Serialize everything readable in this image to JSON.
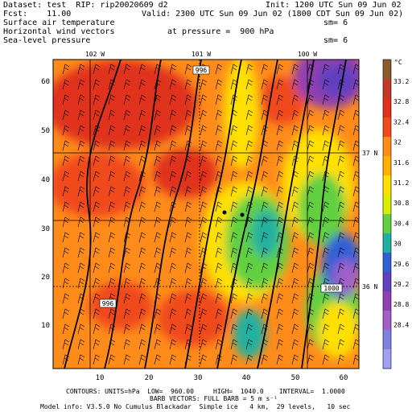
{
  "header": {
    "dataset_line": "Dataset: test  RIP: rip20020609 d2",
    "init_line": "Init: 1200 UTC Sun 09 Jun 02",
    "fcst_line": "Fcst:    11.00",
    "valid_line": "Valid: 2300 UTC Sun 09 Jun 02 (1800 CDT Sun 09 Jun 02)",
    "field1": "Surface air temperature",
    "field2": "Horizontal wind vectors",
    "field3": "Sea-level pressure",
    "pressure_label": "at pressure =  900 hPa",
    "sm1": "sm= 6",
    "sm2": "sm= 6"
  },
  "map": {
    "longitudes": [
      "102 W",
      "101 W",
      "100 W"
    ],
    "latitudes": [
      "37 N",
      "36 N"
    ],
    "x_ticks": [
      "10",
      "20",
      "30",
      "40",
      "50",
      "60"
    ],
    "y_ticks": [
      "10",
      "20",
      "30",
      "40",
      "50",
      "60"
    ],
    "isobar_labels": [
      "996",
      "996",
      "1000"
    ]
  },
  "colorbar": {
    "unit": "°C",
    "labels": [
      "33.2",
      "32.8",
      "32.4",
      "32",
      "31.6",
      "31.2",
      "30.8",
      "30.4",
      "30",
      "29.6",
      "29.2",
      "28.8",
      "28.4"
    ],
    "colors": [
      "#8b5a2b",
      "#c0392b",
      "#e0301e",
      "#f04a1a",
      "#ff8c1a",
      "#ffb000",
      "#ffe000",
      "#d8f000",
      "#60d040",
      "#20b0a0",
      "#3060d8",
      "#6040c0",
      "#9040b0",
      "#a060c8",
      "#8080e0",
      "#a0a0f0"
    ]
  },
  "footer": {
    "line1": "CONTOURS: UNITS=hPa  LOW=  960.00     HIGH=  1040.0    INTERVAL=  1.0000",
    "line2": "BARB VECTORS: FULL BARB = 5 m s⁻¹",
    "line3": "Model info: V3.5.0 No Cumulus Blackadar  Simple ice   4 km,  29 levels,   10 sec"
  }
}
